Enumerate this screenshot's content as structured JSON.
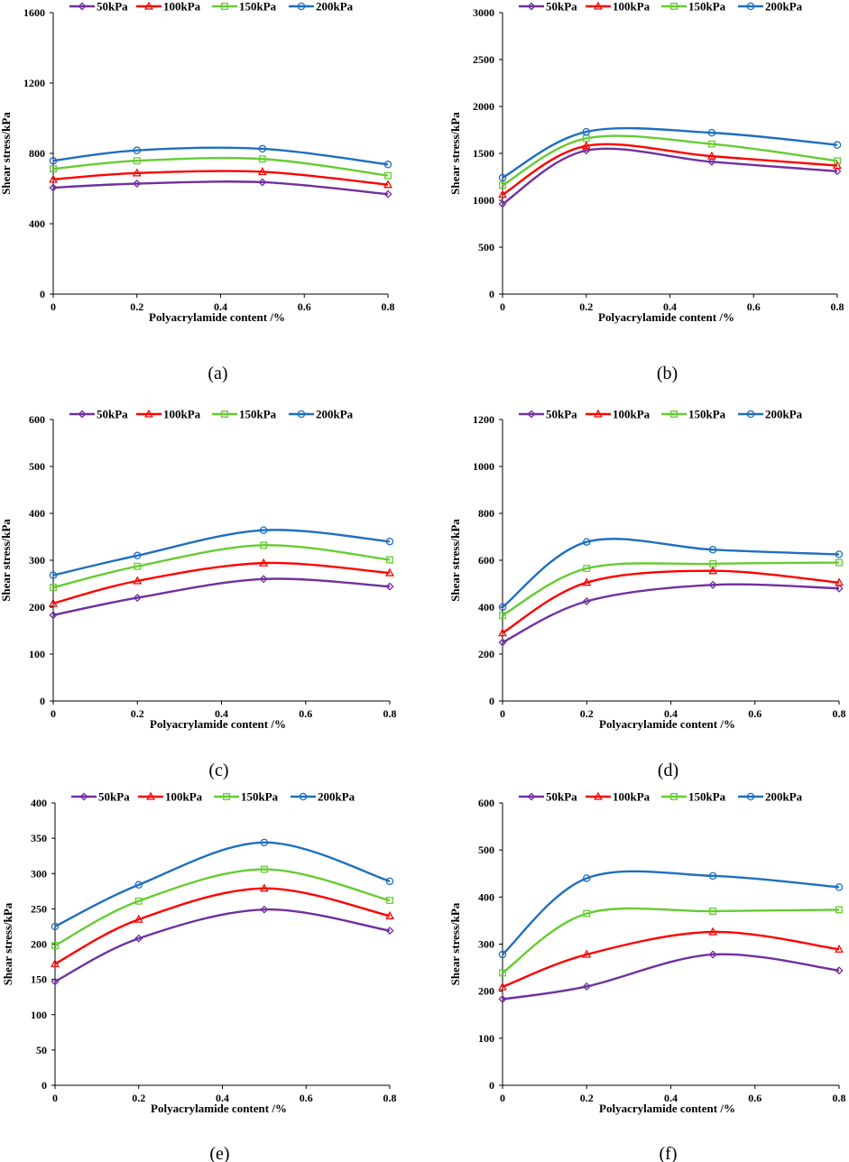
{
  "chart_data": [
    {
      "type": "line",
      "panel": "a",
      "caption": "(a)",
      "xlabel": "Polyacrylamide content /%",
      "ylabel": "Shear stress/kPa",
      "xlim": [
        0,
        0.8
      ],
      "ylim": [
        0,
        1600
      ],
      "xticks": [
        "0",
        "0.2",
        "0.4",
        "0.6",
        "0.8"
      ],
      "yticks": [
        "0",
        "400",
        "800",
        "1200",
        "1600"
      ],
      "x": [
        0,
        0.2,
        0.5,
        0.8
      ],
      "series": [
        {
          "name": "50kPa",
          "values": [
            605,
            628,
            636,
            568
          ]
        },
        {
          "name": "100kPa",
          "values": [
            652,
            688,
            695,
            622
          ]
        },
        {
          "name": "150kPa",
          "values": [
            712,
            758,
            768,
            674
          ]
        },
        {
          "name": "200kPa",
          "values": [
            758,
            817,
            826,
            737
          ]
        }
      ]
    },
    {
      "type": "line",
      "panel": "b",
      "caption": "(b)",
      "xlabel": "Polyacrylamide content /%",
      "ylabel": "Shear stress/kPa",
      "xlim": [
        0,
        0.8
      ],
      "ylim": [
        0,
        3000
      ],
      "xticks": [
        "0",
        "0.2",
        "0.4",
        "0.6",
        "0.8"
      ],
      "yticks": [
        "0",
        "500",
        "1000",
        "1500",
        "2000",
        "2500",
        "3000"
      ],
      "x": [
        0,
        0.2,
        0.5,
        0.8
      ],
      "series": [
        {
          "name": "50kPa",
          "values": [
            960,
            1530,
            1410,
            1310
          ]
        },
        {
          "name": "100kPa",
          "values": [
            1060,
            1580,
            1470,
            1370
          ]
        },
        {
          "name": "150kPa",
          "values": [
            1160,
            1660,
            1600,
            1420
          ]
        },
        {
          "name": "200kPa",
          "values": [
            1240,
            1730,
            1720,
            1590
          ]
        }
      ]
    },
    {
      "type": "line",
      "panel": "c",
      "caption": "(c)",
      "xlabel": "Polyacrylamide content /%",
      "ylabel": "Shear stress/kPa",
      "xlim": [
        0,
        0.8
      ],
      "ylim": [
        0,
        600
      ],
      "xticks": [
        "0",
        "0.2",
        "0.4",
        "0.6",
        "0.8"
      ],
      "yticks": [
        "0",
        "100",
        "200",
        "300",
        "400",
        "500",
        "600"
      ],
      "x": [
        0,
        0.2,
        0.5,
        0.8
      ],
      "series": [
        {
          "name": "50kPa",
          "values": [
            183,
            220,
            260,
            244
          ]
        },
        {
          "name": "100kPa",
          "values": [
            208,
            256,
            294,
            273
          ]
        },
        {
          "name": "150kPa",
          "values": [
            242,
            287,
            332,
            301
          ]
        },
        {
          "name": "200kPa",
          "values": [
            268,
            310,
            364,
            340
          ]
        }
      ]
    },
    {
      "type": "line",
      "panel": "d",
      "caption": "(d)",
      "xlabel": "Polyacrylamide content /%",
      "ylabel": "Shear stress/kPa",
      "xlim": [
        0,
        0.8
      ],
      "ylim": [
        0,
        1200
      ],
      "xticks": [
        "0",
        "0.2",
        "0.4",
        "0.6",
        "0.8"
      ],
      "yticks": [
        "0",
        "200",
        "400",
        "600",
        "800",
        "1000",
        "1200"
      ],
      "x": [
        0,
        0.2,
        0.5,
        0.8
      ],
      "series": [
        {
          "name": "50kPa",
          "values": [
            250,
            425,
            495,
            480
          ]
        },
        {
          "name": "100kPa",
          "values": [
            290,
            505,
            555,
            505
          ]
        },
        {
          "name": "150kPa",
          "values": [
            365,
            565,
            585,
            590
          ]
        },
        {
          "name": "200kPa",
          "values": [
            400,
            678,
            645,
            625
          ]
        }
      ]
    },
    {
      "type": "line",
      "panel": "e",
      "caption": "(e)",
      "xlabel": "Polyacrylamide content /%",
      "ylabel": "Shear stress/kPa",
      "xlim": [
        0,
        0.8
      ],
      "ylim": [
        0,
        400
      ],
      "xticks": [
        "0",
        "0.2",
        "0.4",
        "0.6",
        "0.8"
      ],
      "yticks": [
        "0",
        "50",
        "100",
        "150",
        "200",
        "250",
        "300",
        "350",
        "400"
      ],
      "x": [
        0,
        0.2,
        0.5,
        0.8
      ],
      "series": [
        {
          "name": "50kPa",
          "values": [
            147,
            208,
            249,
            219
          ]
        },
        {
          "name": "100kPa",
          "values": [
            172,
            235,
            279,
            240
          ]
        },
        {
          "name": "150kPa",
          "values": [
            198,
            261,
            306,
            262
          ]
        },
        {
          "name": "200kPa",
          "values": [
            225,
            284,
            344,
            289
          ]
        }
      ]
    },
    {
      "type": "line",
      "panel": "f",
      "caption": "(f)",
      "xlabel": "Polyacrylamide content /%",
      "ylabel": "Shear stress/kPa",
      "xlim": [
        0,
        0.8
      ],
      "ylim": [
        0,
        600
      ],
      "xticks": [
        "0",
        "0.2",
        "0.4",
        "0.6",
        "0.8"
      ],
      "yticks": [
        "0",
        "100",
        "200",
        "300",
        "400",
        "500",
        "600"
      ],
      "x": [
        0,
        0.2,
        0.5,
        0.8
      ],
      "series": [
        {
          "name": "50kPa",
          "values": [
            183,
            210,
            278,
            244
          ]
        },
        {
          "name": "100kPa",
          "values": [
            209,
            278,
            326,
            289
          ]
        },
        {
          "name": "150kPa",
          "values": [
            239,
            365,
            370,
            373
          ]
        },
        {
          "name": "200kPa",
          "values": [
            278,
            440,
            445,
            421
          ]
        }
      ]
    }
  ],
  "series_styles": [
    {
      "color": "#7030A0",
      "marker": "diamond"
    },
    {
      "color": "#FF0000",
      "marker": "triangle"
    },
    {
      "color": "#66CC33",
      "marker": "square"
    },
    {
      "color": "#1F6FC0",
      "marker": "circle"
    }
  ]
}
